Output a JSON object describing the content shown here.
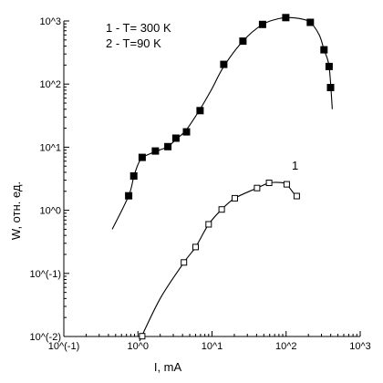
{
  "chart_data": {
    "type": "scatter",
    "xlabel": "I, mA",
    "ylabel": "W, отн. ед.",
    "x_scale": "log",
    "y_scale": "log",
    "xlim": [
      0.1,
      1000
    ],
    "ylim": [
      0.01,
      1000
    ],
    "x_ticks": [
      {
        "value": 0.1,
        "label": "10^(-1)"
      },
      {
        "value": 1,
        "label": "10^0"
      },
      {
        "value": 10,
        "label": "10^1"
      },
      {
        "value": 100,
        "label": "10^2"
      },
      {
        "value": 1000,
        "label": "10^3"
      }
    ],
    "y_ticks": [
      {
        "value": 0.01,
        "label": "10^(-2)"
      },
      {
        "value": 0.1,
        "label": "10^(-1)"
      },
      {
        "value": 1,
        "label": "10^0"
      },
      {
        "value": 10,
        "label": "10^1"
      },
      {
        "value": 100,
        "label": "10^2"
      },
      {
        "value": 1000,
        "label": "10^3"
      }
    ],
    "legend": {
      "placement": "top-left",
      "entries": [
        "1 - T= 300 K",
        "2 - T=90 K"
      ]
    },
    "annotations": [
      {
        "text": "1",
        "x": 170,
        "y": 3.2
      }
    ],
    "series": [
      {
        "marker": "filled-square",
        "color": "#000000",
        "points": [
          [
            0.75,
            1.7
          ],
          [
            0.88,
            3.5
          ],
          [
            1.14,
            6.9
          ],
          [
            1.72,
            8.7
          ],
          [
            2.54,
            10.2
          ],
          [
            3.26,
            13.9
          ],
          [
            4.52,
            17.5
          ],
          [
            6.9,
            38
          ],
          [
            14.4,
            205
          ],
          [
            26.1,
            480
          ],
          [
            48,
            880
          ],
          [
            99,
            1130
          ],
          [
            212,
            950
          ],
          [
            325,
            350
          ],
          [
            380,
            190
          ],
          [
            398,
            88
          ]
        ],
        "curve": [
          [
            0.45,
            0.5
          ],
          [
            0.75,
            1.7
          ],
          [
            0.88,
            3.4
          ],
          [
            1.0,
            5.3
          ],
          [
            1.14,
            6.8
          ],
          [
            1.5,
            8.0
          ],
          [
            2.0,
            9.1
          ],
          [
            2.54,
            10.2
          ],
          [
            3.26,
            13.2
          ],
          [
            4.52,
            19
          ],
          [
            6.9,
            40
          ],
          [
            10,
            85
          ],
          [
            14.4,
            190
          ],
          [
            26.1,
            480
          ],
          [
            48,
            880
          ],
          [
            80,
            1090
          ],
          [
            110,
            1130
          ],
          [
            160,
            1080
          ],
          [
            212,
            950
          ],
          [
            280,
            600
          ],
          [
            325,
            350
          ],
          [
            380,
            190
          ],
          [
            420,
            40
          ]
        ]
      },
      {
        "marker": "open-square",
        "color": "#000000",
        "points": [
          [
            1.14,
            0.0101
          ],
          [
            4.18,
            0.149
          ],
          [
            6.0,
            0.262
          ],
          [
            9.0,
            0.6
          ],
          [
            13.5,
            1.03
          ],
          [
            20.3,
            1.55
          ],
          [
            40.5,
            2.25
          ],
          [
            59,
            2.72
          ],
          [
            102,
            2.58
          ],
          [
            139,
            1.68
          ]
        ],
        "curve": [
          [
            1.05,
            0.0085
          ],
          [
            2.0,
            0.04
          ],
          [
            4.18,
            0.149
          ],
          [
            6.0,
            0.262
          ],
          [
            9.0,
            0.6
          ],
          [
            13.5,
            1.03
          ],
          [
            20.3,
            1.55
          ],
          [
            40.5,
            2.25
          ],
          [
            59,
            2.7
          ],
          [
            85,
            2.75
          ],
          [
            102,
            2.55
          ],
          [
            125,
            1.9
          ],
          [
            139,
            1.68
          ]
        ]
      }
    ]
  }
}
